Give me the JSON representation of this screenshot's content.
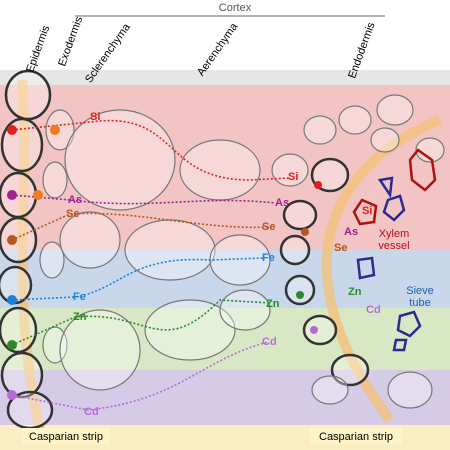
{
  "header": {
    "cortex": "Cortex"
  },
  "layers": [
    "Epidermis",
    "Exodermis",
    "Sclerenchyma",
    "Aerenchyma",
    "Endodermis"
  ],
  "left_elements": [
    "Si",
    "As",
    "Se",
    "Fe",
    "Zn",
    "Cd"
  ],
  "right_elements": [
    "Si",
    "As",
    "Se",
    "Si",
    "As",
    "Se",
    "Fe",
    "Zn",
    "Zn",
    "Cd",
    "Cd"
  ],
  "vessels": {
    "xylem": "Xylem vessel",
    "sieve": "Sieve tube"
  },
  "captions": [
    "Casparian strip",
    "Casparian strip"
  ]
}
